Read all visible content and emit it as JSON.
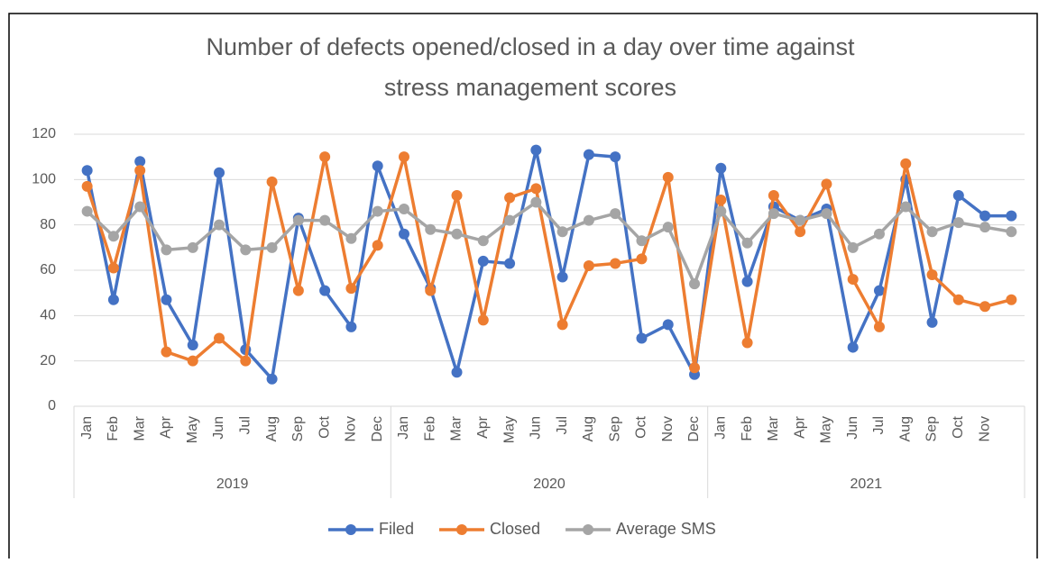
{
  "chart_data": {
    "type": "line",
    "title": [
      "Number of defects opened/closed in a day over time against",
      "stress management scores"
    ],
    "categories": [
      "Jan",
      "Feb",
      "Mar",
      "Apr",
      "May",
      "Jun",
      "Jul",
      "Aug",
      "Sep",
      "Oct",
      "Nov",
      "Dec",
      "Jan",
      "Feb",
      "Mar",
      "Apr",
      "May",
      "Jun",
      "Jul",
      "Aug",
      "Sep",
      "Oct",
      "Nov",
      "Dec",
      "Jan",
      "Feb",
      "Mar",
      "Apr",
      "May",
      "Jun",
      "Jul",
      "Aug",
      "Sep",
      "Oct",
      "Nov",
      null
    ],
    "groups": [
      "2019",
      "2020",
      "2021"
    ],
    "series": [
      {
        "name": "Filed",
        "color": "#4472c4",
        "values": [
          104,
          47,
          108,
          47,
          27,
          103,
          25,
          12,
          83,
          51,
          35,
          106,
          76,
          52,
          15,
          64,
          63,
          113,
          57,
          111,
          110,
          30,
          36,
          14,
          105,
          55,
          88,
          82,
          87,
          26,
          51,
          100,
          37,
          93,
          84,
          84
        ]
      },
      {
        "name": "Closed",
        "color": "#ed7d31",
        "values": [
          97,
          61,
          104,
          24,
          20,
          30,
          20,
          99,
          51,
          110,
          52,
          71,
          110,
          51,
          93,
          38,
          92,
          96,
          36,
          62,
          63,
          65,
          101,
          17,
          91,
          28,
          93,
          77,
          98,
          56,
          35,
          107,
          58,
          47,
          44,
          47
        ]
      },
      {
        "name": "Average SMS",
        "color": "#a5a5a5",
        "values": [
          86,
          75,
          88,
          69,
          70,
          80,
          69,
          70,
          82,
          82,
          74,
          86,
          87,
          78,
          76,
          73,
          82,
          90,
          77,
          82,
          85,
          73,
          79,
          54,
          86,
          72,
          85,
          82,
          85,
          70,
          76,
          88,
          77,
          81,
          79,
          77
        ]
      }
    ],
    "ylim": [
      0,
      120
    ],
    "yticks": [
      0,
      20,
      40,
      60,
      80,
      100,
      120
    ],
    "grid": true,
    "legend": "bottom"
  }
}
